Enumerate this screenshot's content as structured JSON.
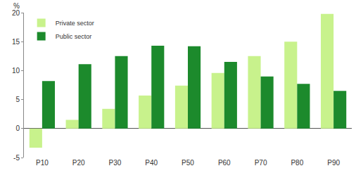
{
  "chart_data": {
    "type": "bar",
    "ylabel": "%",
    "categories": [
      "P10",
      "P20",
      "P30",
      "P40",
      "P50",
      "P60",
      "P70",
      "P80",
      "P90"
    ],
    "series": [
      {
        "name": "Private sector",
        "color": "#c8f28c",
        "values": [
          -3.3,
          1.5,
          3.4,
          5.7,
          7.4,
          9.6,
          12.5,
          15.0,
          19.8
        ]
      },
      {
        "name": "Public sector",
        "color": "#1c8a2c",
        "values": [
          8.2,
          11.1,
          12.5,
          14.3,
          14.2,
          11.5,
          9.0,
          7.7,
          6.5
        ]
      }
    ],
    "ylim": [
      -5,
      20
    ],
    "yticks": [
      -5,
      0,
      5,
      10,
      15,
      20
    ],
    "grid": true,
    "legend": "top-left"
  }
}
